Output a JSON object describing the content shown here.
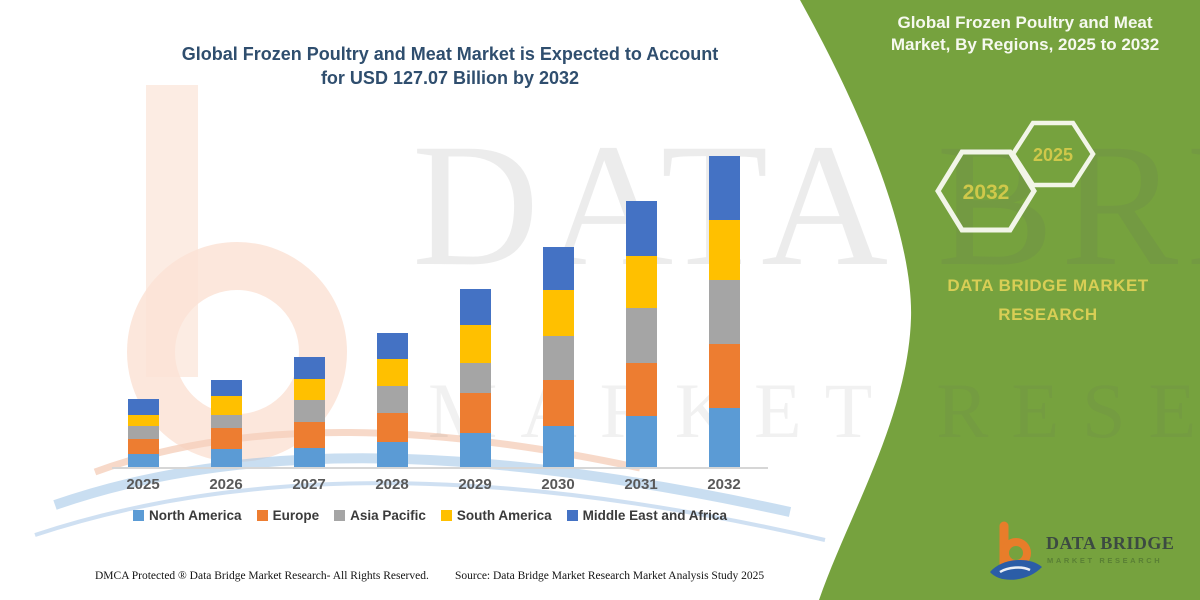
{
  "chart": {
    "title_line1": "Global Frozen Poultry and Meat Market is Expected to Account",
    "title_line2": "for USD 127.07 Billion by 2032"
  },
  "chart_data": {
    "type": "bar",
    "stacked": true,
    "unit": "USD Billion",
    "title": "Global Frozen Poultry and Meat Market is Expected to Account for USD 127.07 Billion by 2032",
    "annotation": "USD 127.07 Billion by 2032",
    "legend_position": "bottom",
    "grid": false,
    "y_axis_shown": false,
    "categories": [
      "2025",
      "2026",
      "2027",
      "2028",
      "2029",
      "2030",
      "2031",
      "2032"
    ],
    "series": [
      {
        "name": "North America",
        "color": "#5B9BD5",
        "values": [
          5.7,
          7.8,
          8.2,
          10.6,
          14.3,
          17.0,
          21.1,
          24.3
        ]
      },
      {
        "name": "Europe",
        "color": "#ED7D31",
        "values": [
          6.3,
          8.3,
          10.5,
          11.6,
          16.1,
          18.7,
          21.8,
          26.2
        ]
      },
      {
        "name": "Asia Pacific",
        "color": "#A5A5A5",
        "values": [
          5.0,
          5.3,
          9.0,
          11.2,
          12.5,
          18.1,
          22.2,
          26.1
        ]
      },
      {
        "name": "South America",
        "color": "#FFC000",
        "values": [
          4.5,
          7.9,
          8.7,
          10.9,
          15.4,
          18.8,
          21.4,
          24.5
        ]
      },
      {
        "name": "Middle East and Africa",
        "color": "#4472C4",
        "values": [
          6.4,
          6.4,
          8.9,
          10.5,
          14.7,
          17.3,
          22.1,
          25.97
        ]
      }
    ],
    "totals_estimated": [
      27.9,
      35.7,
      45.3,
      54.8,
      73.0,
      89.9,
      108.6,
      127.07
    ]
  },
  "side_panel": {
    "bg_color": "#76A23E",
    "title_line1": "Global Frozen Poultry and Meat",
    "title_line2": "Market, By Regions, 2025 to 2032",
    "hexagons": [
      {
        "label": "2032"
      },
      {
        "label": "2025"
      }
    ],
    "brand_line1": "DATA BRIDGE MARKET",
    "brand_line2": "RESEARCH",
    "accent_text_color": "#D8CE55"
  },
  "logo": {
    "name": "DATA BRIDGE",
    "tagline": "MARKET RESEARCH",
    "orange": "#E87D2A",
    "blue": "#2B5DA7"
  },
  "watermark": {
    "line1": "DATA BRIDGE",
    "line2": "MARKET RESEARCH"
  },
  "footer": {
    "left": "DMCA Protected ® Data Bridge Market Research-  All Rights Reserved.",
    "right": "Source: Data Bridge Market Research  Market Analysis Study 2025"
  }
}
